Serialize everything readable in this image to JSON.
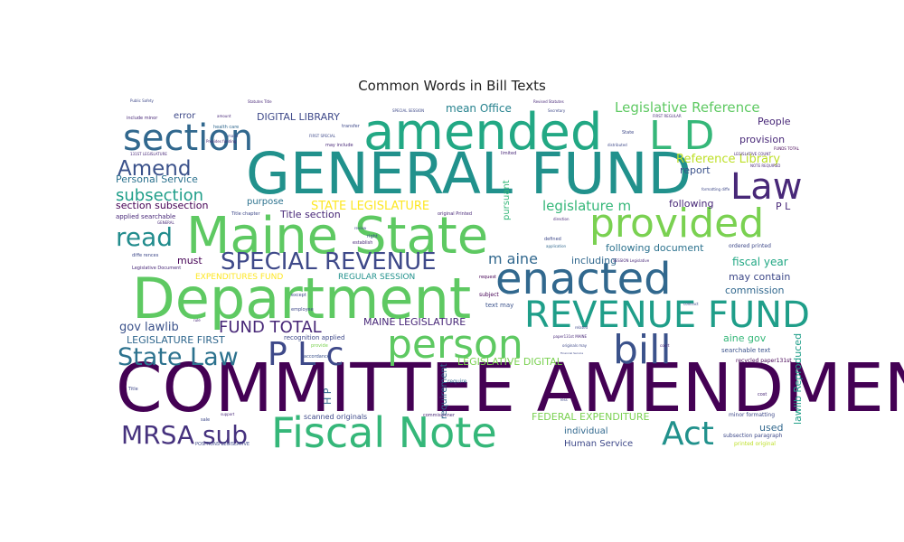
{
  "chart_data": {
    "type": "wordcloud",
    "title": "Common Words in Bill Texts",
    "colormap": "viridis",
    "background": "#ffffff",
    "words": [
      {
        "text": "COMMITTEE AMENDMENT",
        "weight": 90,
        "color": "#440154"
      },
      {
        "text": "GENERAL FUND",
        "weight": 78,
        "color": "#21918c"
      },
      {
        "text": "Department",
        "weight": 74,
        "color": "#5ec962"
      },
      {
        "text": "Maine State",
        "weight": 66,
        "color": "#5ec962"
      },
      {
        "text": "amended",
        "weight": 64,
        "color": "#22a884"
      },
      {
        "text": "enacted",
        "weight": 54,
        "color": "#31688e"
      },
      {
        "text": "Fiscal Note",
        "weight": 52,
        "color": "#35b779"
      },
      {
        "text": "provided",
        "weight": 50,
        "color": "#7ad151"
      },
      {
        "text": "person",
        "weight": 50,
        "color": "#5ec962"
      },
      {
        "text": "REVENUE FUND",
        "weight": 46,
        "color": "#1f9e89"
      },
      {
        "text": "bill",
        "weight": 50,
        "color": "#3b528b"
      },
      {
        "text": "section",
        "weight": 46,
        "color": "#31688e"
      },
      {
        "text": "Law",
        "weight": 46,
        "color": "#482878"
      },
      {
        "text": "L D",
        "weight": 48,
        "color": "#35b779"
      },
      {
        "text": "P L c",
        "weight": 42,
        "color": "#3e4989"
      },
      {
        "text": "Act",
        "weight": 42,
        "color": "#21918c"
      },
      {
        "text": "SPECIAL REVENUE",
        "weight": 30,
        "color": "#3e4989"
      },
      {
        "text": "MRSA sub",
        "weight": 32,
        "color": "#46327e"
      },
      {
        "text": "State Law",
        "weight": 30,
        "color": "#2c728e"
      },
      {
        "text": "read",
        "weight": 30,
        "color": "#228c8d"
      },
      {
        "text": "Amend",
        "weight": 26,
        "color": "#3b528b"
      },
      {
        "text": "FUND TOTAL",
        "weight": 20,
        "color": "#482878"
      },
      {
        "text": "subsection",
        "weight": 20,
        "color": "#1f9e89"
      },
      {
        "text": "legislature m",
        "weight": 16,
        "color": "#35b779"
      },
      {
        "text": "m aine",
        "weight": 18,
        "color": "#31688e"
      },
      {
        "text": "Legislative Reference",
        "weight": 16,
        "color": "#5ec962"
      },
      {
        "text": "Reference Library",
        "weight": 14,
        "color": "#bddf26"
      },
      {
        "text": "STATE LEGISLATURE",
        "weight": 14,
        "color": "#fde725"
      },
      {
        "text": "gov lawlib",
        "weight": 14,
        "color": "#3b528b"
      },
      {
        "text": "LEGISLATURE FIRST",
        "weight": 12,
        "color": "#31688e"
      },
      {
        "text": "MAINE LEGISLATURE",
        "weight": 12,
        "color": "#482878"
      },
      {
        "text": "LEGISLATIVE DIGITAL",
        "weight": 12,
        "color": "#7ad151"
      },
      {
        "text": "FEDERAL EXPENDITURE",
        "weight": 12,
        "color": "#7ad151"
      },
      {
        "text": "mean Office",
        "weight": 13,
        "color": "#26828e"
      },
      {
        "text": "DIGITAL LIBRARY",
        "weight": 12,
        "color": "#3e4989"
      },
      {
        "text": "Personal Service",
        "weight": 12,
        "color": "#2c728e"
      },
      {
        "text": "section subsection",
        "weight": 12,
        "color": "#440154"
      },
      {
        "text": "Title section",
        "weight": 12,
        "color": "#482878"
      },
      {
        "text": "following document",
        "weight": 12,
        "color": "#2c728e"
      },
      {
        "text": "fiscal year",
        "weight": 13,
        "color": "#22a884"
      },
      {
        "text": "may contain",
        "weight": 12,
        "color": "#3e4989"
      },
      {
        "text": "commission",
        "weight": 12,
        "color": "#31688e"
      },
      {
        "text": "provision",
        "weight": 12,
        "color": "#482878"
      },
      {
        "text": "People",
        "weight": 12,
        "color": "#482878"
      },
      {
        "text": "report",
        "weight": 12,
        "color": "#3b528b"
      },
      {
        "text": "following",
        "weight": 12,
        "color": "#482878"
      },
      {
        "text": "aine gov",
        "weight": 12,
        "color": "#35b779"
      },
      {
        "text": "used",
        "weight": 12,
        "color": "#31688e"
      },
      {
        "text": "Human Service",
        "weight": 11,
        "color": "#3e4989"
      },
      {
        "text": "individual",
        "weight": 11,
        "color": "#31688e"
      },
      {
        "text": "must",
        "weight": 12,
        "color": "#440154"
      },
      {
        "text": "including",
        "weight": 12,
        "color": "#31688e"
      },
      {
        "text": "purpose",
        "weight": 11,
        "color": "#2c728e"
      },
      {
        "text": "error",
        "weight": 11,
        "color": "#3e4989"
      },
      {
        "text": "pursuant",
        "weight": 11,
        "color": "#35b779"
      },
      {
        "text": "requirement",
        "weight": 11,
        "color": "#31688e"
      },
      {
        "text": "lawlib Reproduced",
        "weight": 12,
        "color": "#1f9e89"
      },
      {
        "text": "P L",
        "weight": 12,
        "color": "#482878"
      },
      {
        "text": "H P",
        "weight": 12,
        "color": "#31688e"
      },
      {
        "text": "EXPENDITURES FUND",
        "weight": 10,
        "color": "#fde725"
      },
      {
        "text": "REGULAR SESSION",
        "weight": 10,
        "color": "#21918c"
      },
      {
        "text": "scanned originals",
        "weight": 9,
        "color": "#3e4989"
      },
      {
        "text": "applied searchable",
        "weight": 8,
        "color": "#482878"
      },
      {
        "text": "recognition applied",
        "weight": 8,
        "color": "#3e4989"
      },
      {
        "text": "Legislative Document",
        "weight": 6,
        "color": "#482878"
      },
      {
        "text": "searchable text",
        "weight": 8,
        "color": "#3b528b"
      },
      {
        "text": "ordered printed",
        "weight": 7,
        "color": "#3e4989"
      },
      {
        "text": "recycled paper131st",
        "weight": 7,
        "color": "#440154"
      },
      {
        "text": "subsection paragraph",
        "weight": 7,
        "color": "#3e4989"
      },
      {
        "text": "printed original",
        "weight": 7,
        "color": "#bddf26"
      },
      {
        "text": "minor formatting",
        "weight": 7,
        "color": "#3e4989"
      },
      {
        "text": "text may",
        "weight": 8,
        "color": "#3b528b"
      },
      {
        "text": "subject",
        "weight": 7,
        "color": "#440154"
      },
      {
        "text": "request",
        "weight": 6,
        "color": "#440154"
      },
      {
        "text": "require",
        "weight": 7,
        "color": "#31688e"
      },
      {
        "text": "commissioner",
        "weight": 6,
        "color": "#482878"
      },
      {
        "text": "original Printed",
        "weight": 6,
        "color": "#482878"
      },
      {
        "text": "Title chapter",
        "weight": 6,
        "color": "#3e4989"
      },
      {
        "text": "defined",
        "weight": 6,
        "color": "#3e4989"
      },
      {
        "text": "application",
        "weight": 5,
        "color": "#31688e"
      },
      {
        "text": "SESSION Legislative",
        "weight": 5,
        "color": "#482878"
      },
      {
        "text": "establish",
        "weight": 6,
        "color": "#482878"
      },
      {
        "text": "review",
        "weight": 5,
        "color": "#3e4989"
      },
      {
        "text": "right",
        "weight": 6,
        "color": "#3b528b"
      },
      {
        "text": "except",
        "weight": 6,
        "color": "#3e4989"
      },
      {
        "text": "employee",
        "weight": 6,
        "color": "#3e4989"
      },
      {
        "text": "provide",
        "weight": 6,
        "color": "#7ad151"
      },
      {
        "text": "accordance",
        "weight": 6,
        "color": "#3b528b"
      },
      {
        "text": "health care",
        "weight": 6,
        "color": "#31688e"
      },
      {
        "text": "may include",
        "weight": 6,
        "color": "#482878"
      },
      {
        "text": "FIRST SPECIAL",
        "weight": 5,
        "color": "#3e4989"
      },
      {
        "text": "SPECIAL SESSION",
        "weight": 5,
        "color": "#3e4989"
      },
      {
        "text": "FIRST REGULAR",
        "weight": 5,
        "color": "#482878"
      },
      {
        "text": "Revised Statutes",
        "weight": 5,
        "color": "#482878"
      },
      {
        "text": "include minor",
        "weight": 6,
        "color": "#482878"
      },
      {
        "text": "POSITIONS LEGISLATIVE",
        "weight": 6,
        "color": "#3e4989"
      },
      {
        "text": "distributed",
        "weight": 5,
        "color": "#3e4989"
      },
      {
        "text": "formatting diffe",
        "weight": 5,
        "color": "#3e4989"
      },
      {
        "text": "NOTE REQUIRED",
        "weight": 5,
        "color": "#482878"
      },
      {
        "text": "paper131st MAINE",
        "weight": 5,
        "color": "#482878"
      },
      {
        "text": "originals may",
        "weight": 5,
        "color": "#3e4989"
      },
      {
        "text": "Financial Service",
        "weight": 4,
        "color": "#3e4989"
      },
      {
        "text": "related",
        "weight": 5,
        "color": "#3e4989"
      },
      {
        "text": "diffe rences",
        "weight": 5,
        "color": "#3e4989"
      },
      {
        "text": "Provides funding",
        "weight": 4,
        "color": "#482878"
      },
      {
        "text": "131ST LEGISLATURE",
        "weight": 4,
        "color": "#482878"
      },
      {
        "text": "Public Safety",
        "weight": 4,
        "color": "#3e4989"
      },
      {
        "text": "Statutes Title",
        "weight": 4,
        "color": "#482878"
      },
      {
        "text": "transfer",
        "weight": 5,
        "color": "#3e4989"
      },
      {
        "text": "limited",
        "weight": 5,
        "color": "#482878"
      },
      {
        "text": "Secretary",
        "weight": 5,
        "color": "#3e4989"
      },
      {
        "text": "amount",
        "weight": 5,
        "color": "#482878"
      },
      {
        "text": "made",
        "weight": 5,
        "color": "#3e4989"
      },
      {
        "text": "LEGISLATIVE COUNT",
        "weight": 4,
        "color": "#482878"
      },
      {
        "text": "FUNDS TOTAL",
        "weight": 4,
        "color": "#440154"
      },
      {
        "text": "direction",
        "weight": 4,
        "color": "#482878"
      },
      {
        "text": "court",
        "weight": 4,
        "color": "#482878"
      },
      {
        "text": "contract",
        "weight": 4,
        "color": "#3e4989"
      },
      {
        "text": "cost",
        "weight": 5,
        "color": "#482878"
      },
      {
        "text": "less",
        "weight": 4,
        "color": "#3e4989"
      },
      {
        "text": "support",
        "weight": 4,
        "color": "#482878"
      },
      {
        "text": "sale",
        "weight": 5,
        "color": "#3e4989"
      },
      {
        "text": "Title",
        "weight": 5,
        "color": "#3e4989"
      },
      {
        "text": "rule",
        "weight": 4,
        "color": "#482878"
      },
      {
        "text": "GENERAL",
        "weight": 4,
        "color": "#482878"
      },
      {
        "text": "State",
        "weight": 5,
        "color": "#3e4989"
      }
    ]
  }
}
